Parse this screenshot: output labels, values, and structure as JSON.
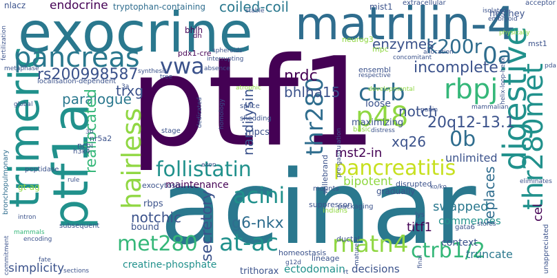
{
  "words": {
    "ptf1": "ptf1",
    "acinar": "acinar",
    "exocrine": "exocrine",
    "matrilin4": "matrilin-4",
    "ptf1a": "ptf1a",
    "trimeric": "trimeric",
    "pancreas": "pancreas",
    "digestive": "digestive",
    "thr280met": "thr280met",
    "p48": "p48",
    "pancreatitis": "pancreatitis",
    "at_ac": "at-ac",
    "matn4": "matn4",
    "follistatin": "follistatin",
    "hairless": "hairless",
    "rbpj": "rbpj",
    "ctrb": "ctrb",
    "ctrb12": "ctrb1/2",
    "met280": "met280",
    "thr280": "thr280",
    "acini": "acini",
    "vwa": "vwa",
    "rs200998587": "rs200998587",
    "coiled_coil": "coiled-coil",
    "endocrine": "endocrine",
    "k200r": "k200r",
    "oa": "0a",
    "enzymes": "enzymes",
    "incomplete": "incomplete",
    "nrdc": "nrdc",
    "bhlha15": "bhlha15",
    "notch": "notch",
    "nardilysin": "nardilysin",
    "paralogue": "paralogue",
    "trxg": "trxg",
    "reallocated": "reallocated",
    "notchic": "notchic",
    "secretory": "secretory",
    "g6_nkx": "g6-nkx",
    "replaces": "replaces",
    "cel": "cel",
    "xq26": "xq26",
    "ob": "0b",
    "q20": "20q12-13.1",
    "mst2_in": "mst2-in",
    "maintenance": "maintenance",
    "bipotent": "bipotent",
    "unlimited": "unlimited",
    "swapped": "swapped",
    "commences": "commences",
    "titf1": "titf1",
    "context": "context",
    "truncate": "truncate",
    "decisions": "decisions",
    "ectodomain": "ectodomain",
    "trithorax": "trithorax",
    "creatine_phosphate": "creatine-phosphate",
    "simplicity": "simplicity",
    "bronchopulmonary": "bronchopulmonary",
    "tryptophan_containing": "tryptophan-containing",
    "nlacz": "nlacz",
    "mist1": "mist1",
    "extracellular": "extracellular",
    "hes_hey": "hes/hey",
    "acceptor": "acceptor",
    "mst1": "mst1",
    "bhlh": "bhlh",
    "dh": "dh",
    "neurog3": "neurog3",
    "mpc": "mpc",
    "pdx1_cre": "pdx1-cre",
    "spheroids": "spheroids",
    "interrupting": "interrupting",
    "absence": "absence",
    "localisation_dependent": "localisation-dependent",
    "ensembl": "ensembl",
    "respective": "respective",
    "allocation": "allocation",
    "concomitant": "concomitant",
    "isolated": "isolated",
    "embryoid": "embryoid",
    "physically": "physically",
    "helix_loop_helix": "helix-loop-helix",
    "mammalian": "mammalian",
    "panin": "panin",
    "loose": "loose",
    "maximizing": "maximizing",
    "developmental": "developmental",
    "mpcs": "mpcs",
    "nr5a2": "nr5a2",
    "ncbi": "ncbi",
    "h3k4": "h3k4",
    "peptidase": "peptidase",
    "gt_ag": "gt-ag",
    "rule": "rule",
    "exocytosis": "exocytosis",
    "rbps": "rbps",
    "bound": "bound",
    "exon": "exon",
    "suppressor": "suppressor",
    "indians": "indians",
    "packaging": "packaging",
    "mounts": "mounts",
    "gradually": "gradually",
    "disrupted": "disrupted",
    "willebrand": "willebrand",
    "pre_gastrulation": "pre-gastrulation",
    "homeostasis": "homeostasis",
    "ductal": "ductal",
    "lineage": "lineage",
    "gata6": "gata6",
    "lys": "lys",
    "stores": "stores",
    "intron": "intron",
    "subsequent": "subsequent",
    "encoding": "encoding",
    "fate": "fate",
    "sections": "sections",
    "commitment": "commitment",
    "mammals": "mammals",
    "stage": "stage",
    "splice": "splice",
    "shedding": "shedding",
    "atrophic": "atrophic",
    "dedicated": "dedicated",
    "homology": "homology",
    "synthesis": "synthesis",
    "tree": "tree",
    "basic": "basic",
    "distress": "distress",
    "global": "global",
    "metaphase": "metaphase",
    "fertilization": "fertilization",
    "stable": "stable",
    "mature": "mature",
    "final": "final",
    "ko_ko": "ko/ko",
    "g12d": "g12d",
    "rt": "rt",
    "unappreciated": "unappreciated",
    "eliminates": "eliminates",
    "pda": "pda",
    "a3": "3a",
    "b3": "3b",
    "mounts2": "mounts"
  }
}
